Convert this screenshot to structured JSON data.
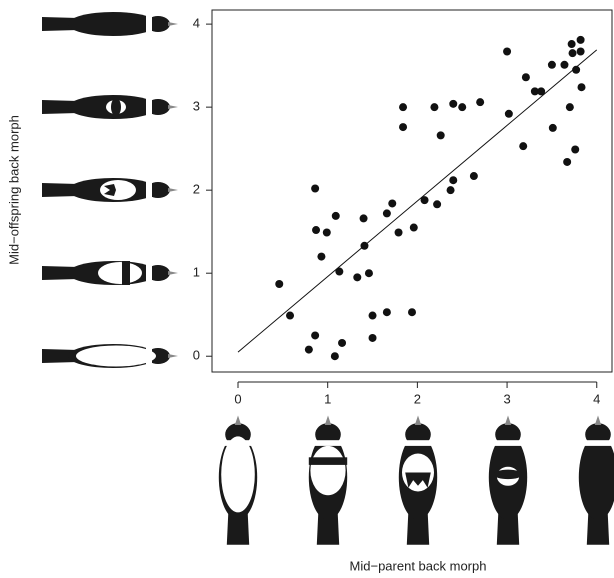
{
  "chart_data": {
    "type": "scatter",
    "xlabel": "Mid−parent back morph",
    "ylabel": "Mid−offspring back morph",
    "xlim": [
      -0.29,
      4.17
    ],
    "ylim": [
      -0.19,
      4.17
    ],
    "xticks": [
      0,
      1,
      2,
      3,
      4
    ],
    "yticks": [
      0,
      1,
      2,
      3,
      4
    ],
    "color": "#111111",
    "x": [
      0.46,
      0.58,
      0.86,
      0.87,
      0.86,
      0.79,
      0.93,
      0.99,
      1.09,
      1.08,
      1.13,
      1.16,
      1.33,
      1.4,
      1.41,
      1.46,
      1.5,
      1.5,
      1.66,
      1.66,
      1.72,
      1.79,
      1.84,
      1.84,
      1.94,
      1.96,
      2.08,
      2.19,
      2.22,
      2.26,
      2.37,
      2.4,
      2.4,
      2.5,
      2.63,
      2.7,
      3.0,
      3.02,
      3.18,
      3.21,
      3.31,
      3.38,
      3.5,
      3.51,
      3.64,
      3.67,
      3.7,
      3.72,
      3.73,
      3.76,
      3.77,
      3.82,
      3.83,
      3.82
    ],
    "values": [
      0.87,
      0.49,
      2.02,
      1.52,
      0.25,
      0.08,
      1.2,
      1.49,
      1.69,
      0.0,
      1.02,
      0.16,
      0.95,
      1.66,
      1.33,
      1.0,
      0.49,
      0.22,
      0.53,
      1.72,
      1.84,
      1.49,
      3.0,
      2.76,
      0.53,
      1.55,
      1.88,
      3.0,
      1.83,
      2.66,
      2.0,
      2.12,
      3.04,
      3.0,
      2.17,
      3.06,
      3.67,
      2.92,
      2.53,
      3.36,
      3.19,
      3.19,
      3.51,
      2.75,
      3.51,
      2.34,
      3.0,
      3.76,
      3.65,
      2.49,
      3.45,
      3.67,
      3.24,
      3.81
    ],
    "fit_line": {
      "x": [
        0,
        4
      ],
      "y": [
        0.05,
        3.69
      ]
    }
  }
}
